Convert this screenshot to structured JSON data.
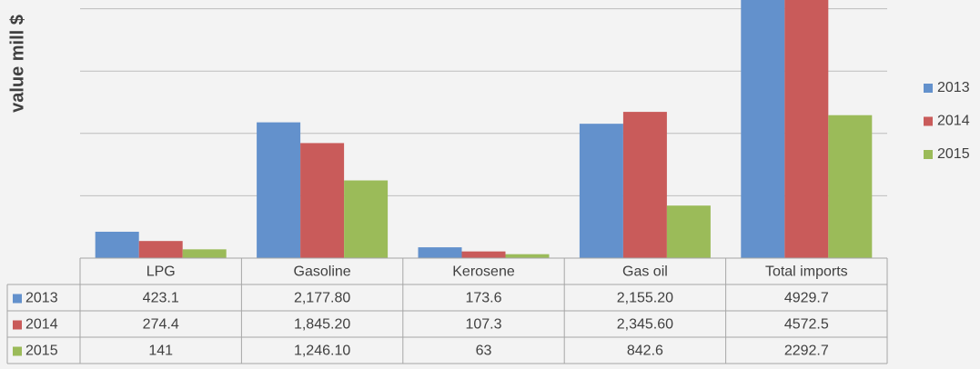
{
  "chart_data": {
    "type": "bar",
    "y_label": "value mill $",
    "categories": [
      "LPG",
      "Gasoline",
      "Kerosene",
      "Gas oil",
      "Total imports"
    ],
    "series": [
      {
        "name": "2013",
        "color": "#6391cc",
        "values": [
          423.1,
          2177.8,
          173.6,
          2155.2,
          4929.7
        ],
        "value_labels": [
          "423.1",
          "2,177.80",
          "173.6",
          "2,155.20",
          "4929.7"
        ]
      },
      {
        "name": "2014",
        "color": "#c95b5a",
        "values": [
          274.4,
          1845.2,
          107.3,
          2345.6,
          4572.5
        ],
        "value_labels": [
          "274.4",
          "1,845.20",
          "107.3",
          "2,345.60",
          "4572.5"
        ]
      },
      {
        "name": "2015",
        "color": "#9bbb59",
        "values": [
          141,
          1246.1,
          63,
          842.6,
          2292.7
        ],
        "value_labels": [
          "141",
          "1,246.10",
          "63",
          "842.6",
          "2292.7"
        ]
      }
    ],
    "ylim": [
      0,
      4140
    ],
    "yticks": [
      0,
      1000,
      2000,
      3000,
      4000
    ],
    "grid": true,
    "legend": "right"
  }
}
